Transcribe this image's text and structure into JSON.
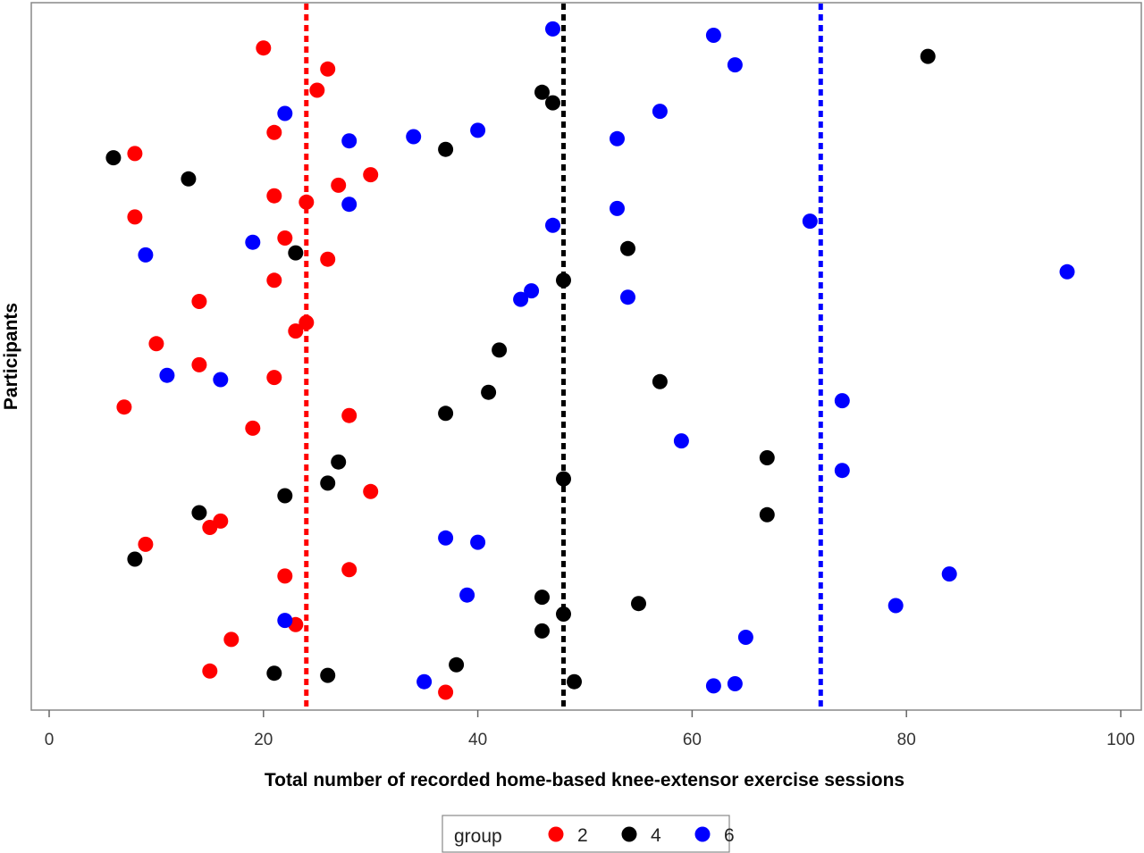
{
  "chart_data": {
    "type": "scatter",
    "xlabel": "Total number of recorded home-based knee-extensor exercise sessions",
    "ylabel": "Participants",
    "xlim": [
      0,
      100
    ],
    "xticks": [
      "0",
      "20",
      "40",
      "60",
      "80",
      "100"
    ],
    "grid": false,
    "legend": {
      "title": "group",
      "placement": "bottom-center",
      "entries": [
        {
          "label": "2",
          "color": "#ff0000"
        },
        {
          "label": "4",
          "color": "#000000"
        },
        {
          "label": "6",
          "color": "#0000ff"
        }
      ]
    },
    "reference_lines": [
      {
        "group": "2",
        "x": 24,
        "color": "#ff0000"
      },
      {
        "group": "4",
        "x": 48,
        "color": "#000000"
      },
      {
        "group": "6",
        "x": 72,
        "color": "#0000ff"
      }
    ],
    "series": [
      {
        "group": "2",
        "color": "#ff0000",
        "x": [
          20,
          26,
          25,
          21,
          8,
          30,
          27,
          21,
          24,
          8,
          22,
          26,
          21,
          14,
          24,
          23,
          10,
          14,
          21,
          7,
          28,
          19,
          30,
          16,
          15,
          9,
          28,
          22,
          23,
          17,
          15,
          37
        ],
        "y": [
          1,
          2,
          3,
          5,
          6,
          7,
          7.5,
          8,
          8.3,
          9,
          10,
          11,
          12,
          13,
          14,
          14.4,
          15,
          16,
          16.6,
          18,
          18.4,
          19,
          22,
          23.4,
          23.7,
          24.5,
          25.7,
          26,
          28.3,
          29,
          30.5,
          31.5
        ]
      },
      {
        "group": "4",
        "color": "#000000",
        "x": [
          82,
          46,
          47,
          37,
          6,
          13,
          54,
          23,
          48,
          42,
          57,
          41,
          37,
          67,
          27,
          26,
          48,
          22,
          14,
          67,
          8,
          46,
          55,
          48,
          46,
          38,
          21,
          26,
          49
        ],
        "y": [
          1.4,
          3.1,
          3.6,
          5.8,
          6.2,
          7.2,
          10.5,
          10.7,
          12,
          15.3,
          16.8,
          17.3,
          18.3,
          20.4,
          20.6,
          21.6,
          21.4,
          22.2,
          23,
          23.1,
          25.2,
          27,
          27.3,
          27.8,
          28.6,
          30.2,
          30.6,
          30.7,
          31
        ]
      },
      {
        "group": "6",
        "color": "#0000ff",
        "x": [
          47,
          62,
          64,
          22,
          57,
          40,
          34,
          28,
          53,
          28,
          53,
          71,
          47,
          19,
          9,
          95,
          45,
          44,
          54,
          11,
          16,
          74,
          59,
          74,
          37,
          40,
          84,
          39,
          79,
          22,
          65,
          35,
          62,
          64
        ],
        "y": [
          0.1,
          0.4,
          1.8,
          4.1,
          4,
          4.9,
          5.2,
          5.4,
          5.3,
          8.4,
          8.6,
          9.2,
          9.4,
          10.2,
          10.8,
          11.6,
          12.5,
          12.9,
          12.8,
          16.5,
          16.7,
          17.7,
          19.6,
          21,
          24.2,
          24.4,
          25.9,
          26.9,
          27.4,
          28.1,
          28.9,
          31,
          31.2,
          31.1
        ]
      }
    ]
  }
}
